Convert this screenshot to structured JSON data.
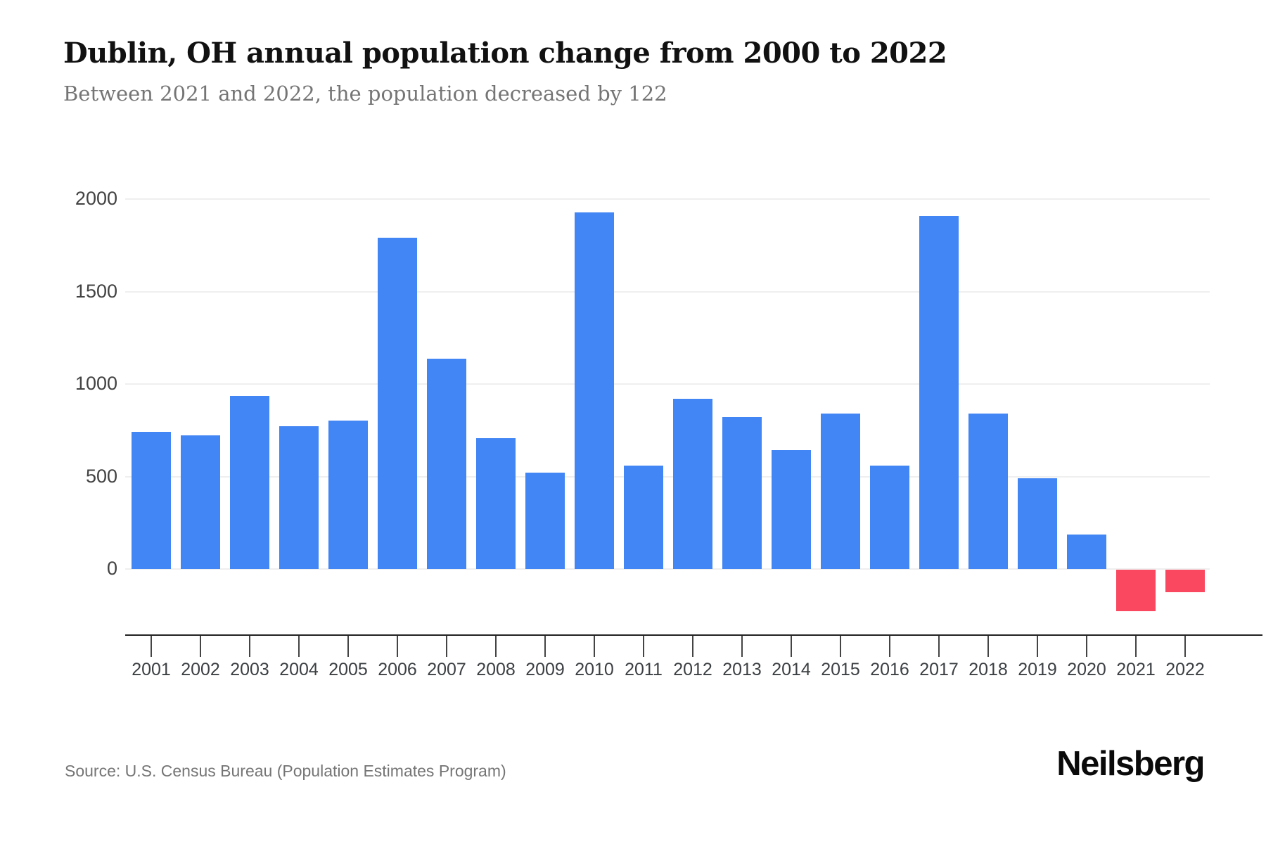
{
  "chart_data": {
    "type": "bar",
    "title": "Dublin, OH annual population change from 2000 to 2022",
    "subtitle": "Between 2021 and 2022, the population decreased by 122",
    "source": "Source: U.S. Census Bureau (Population Estimates Program)",
    "categories": [
      "2001",
      "2002",
      "2003",
      "2004",
      "2005",
      "2006",
      "2007",
      "2008",
      "2009",
      "2010",
      "2011",
      "2012",
      "2013",
      "2014",
      "2015",
      "2016",
      "2017",
      "2018",
      "2019",
      "2020",
      "2021",
      "2022"
    ],
    "values": [
      741,
      723,
      936,
      772,
      803,
      1791,
      1138,
      707,
      521,
      1928,
      559,
      920,
      821,
      643,
      840,
      559,
      1909,
      840,
      490,
      186,
      -224,
      -122
    ],
    "xlabel": "",
    "ylabel": "",
    "y_ticks": [
      0,
      500,
      1000,
      1500,
      2000
    ],
    "ylim": [
      -300,
      2100
    ],
    "grid": "horizontal",
    "legend": "none"
  },
  "branding": {
    "logo_text": "Neilsberg"
  },
  "colors": {
    "positive_bar": "#4285f4",
    "negative_bar": "#fa4860",
    "gridline": "#efefef",
    "axis_line": "#222222",
    "tick_mark": "#444444"
  }
}
